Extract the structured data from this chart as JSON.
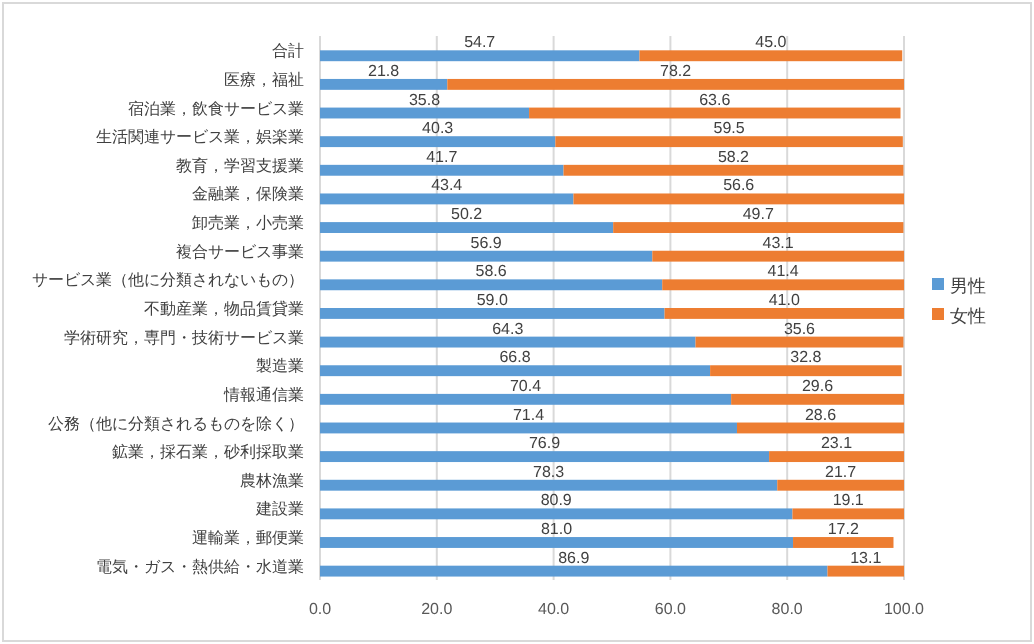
{
  "chart_data": {
    "type": "bar",
    "orientation": "horizontal",
    "stacked": true,
    "grid": "x",
    "legend": "right",
    "categories": [
      "合計",
      "医療，福祉",
      "宿泊業，飲食サービス業",
      "生活関連サービス業，娯楽業",
      "教育，学習支援業",
      "金融業，保険業",
      "卸売業，小売業",
      "複合サービス事業",
      "サービス業（他に分類されないもの）",
      "不動産業，物品賃貸業",
      "学術研究，専門・技術サービス業",
      "製造業",
      "情報通信業",
      "公務（他に分類されるものを除く）",
      "鉱業，採石業，砂利採取業",
      "農林漁業",
      "建設業",
      "運輸業，郵便業",
      "電気・ガス・熱供給・水道業"
    ],
    "series": [
      {
        "name": "男性",
        "color": "#5b9bd5",
        "values": [
          54.7,
          21.8,
          35.8,
          40.3,
          41.7,
          43.4,
          50.2,
          56.9,
          58.6,
          59.0,
          64.3,
          66.8,
          70.4,
          71.4,
          76.9,
          78.3,
          80.9,
          81.0,
          86.9
        ],
        "value_labels": [
          "54.7",
          "21.8",
          "35.8",
          "40.3",
          "41.7",
          "43.4",
          "50.2",
          "56.9",
          "58.6",
          "59.0",
          "64.3",
          "66.8",
          "70.4",
          "71.4",
          "76.9",
          "78.3",
          "80.9",
          "81.0",
          "86.9"
        ]
      },
      {
        "name": "女性",
        "color": "#ed7d31",
        "values": [
          45.0,
          78.2,
          63.6,
          59.5,
          58.2,
          56.6,
          49.7,
          43.1,
          41.4,
          41.0,
          35.6,
          32.8,
          29.6,
          28.6,
          23.1,
          21.7,
          19.1,
          17.2,
          13.1
        ],
        "value_labels": [
          "45.0",
          "78.2",
          "63.6",
          "59.5",
          "58.2",
          "56.6",
          "49.7",
          "43.1",
          "41.4",
          "41.0",
          "35.6",
          "32.8",
          "29.6",
          "28.6",
          "23.1",
          "21.7",
          "19.1",
          "17.2",
          "13.1"
        ]
      }
    ],
    "xlim": [
      0,
      100
    ],
    "xticks": [
      {
        "value": 0,
        "label": "0.0"
      },
      {
        "value": 20,
        "label": "20.0"
      },
      {
        "value": 40,
        "label": "40.0"
      },
      {
        "value": 60,
        "label": "60.0"
      },
      {
        "value": 80,
        "label": "80.0"
      },
      {
        "value": 100,
        "label": "100.0"
      }
    ]
  }
}
